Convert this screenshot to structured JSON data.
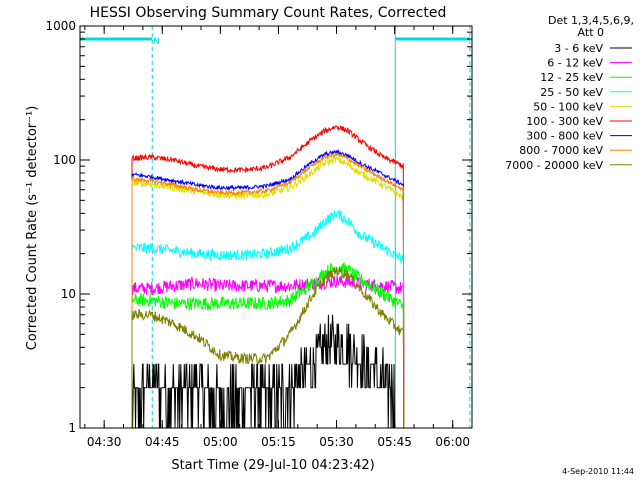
{
  "chart_data": {
    "type": "line",
    "title": "HESSI Observing Summary Count Rates, Corrected",
    "xlabel": "Start Time (29-Jul-10 04:23:42)",
    "ylabel": "Corrected Count Rate (s⁻¹ detector⁻¹)",
    "yscale": "log",
    "ylim": [
      1,
      1000
    ],
    "xlim": [
      4.396,
      6.083
    ],
    "x_ticks": [
      "04:30",
      "04:45",
      "05:00",
      "05:15",
      "05:30",
      "05:45",
      "06:00"
    ],
    "x_tick_hours": [
      4.5,
      4.75,
      5.0,
      5.25,
      5.5,
      5.75,
      6.0
    ],
    "y_ticks": [
      "1",
      "10",
      "100",
      "1000"
    ],
    "y_tick_values": [
      1,
      10,
      100,
      1000
    ],
    "legend_title_line1": "Det 1,3,4,5,6,9,",
    "legend_title_line2": "Att 0",
    "legend_position": "right, outside plot",
    "night_marker_label": "N",
    "footer_date": "4-Sep-2010 11:44",
    "orbit_markers_hours": {
      "night_solid": [
        [
          4.396,
          4.707
        ],
        [
          5.753,
          6.074
        ]
      ],
      "dashed_verticals": [
        4.707,
        6.074
      ],
      "solid_verticals": [
        5.753
      ],
      "marker_level": 800
    },
    "series": [
      {
        "name": "3 - 6 keV",
        "color": "#000000",
        "x": [
          4.62,
          4.7,
          4.8,
          4.9,
          5.0,
          5.1,
          5.2,
          5.3,
          5.4,
          5.45,
          5.5,
          5.55,
          5.6,
          5.7,
          5.75
        ],
        "values": [
          1.5,
          2.2,
          1.8,
          2.0,
          1.6,
          1.8,
          1.7,
          2.0,
          3.0,
          4.0,
          4.2,
          4.0,
          3.2,
          2.2,
          2.0
        ]
      },
      {
        "name": "6 - 12 keV",
        "color": "#ff00ff",
        "x": [
          4.62,
          4.7,
          4.8,
          4.9,
          5.0,
          5.1,
          5.2,
          5.3,
          5.4,
          5.5,
          5.6,
          5.7,
          5.79
        ],
        "values": [
          11,
          11,
          11.5,
          12,
          11.5,
          11.5,
          11.5,
          11.5,
          12,
          12.5,
          12,
          11.5,
          11
        ]
      },
      {
        "name": "12 - 25 keV",
        "color": "#00ff00",
        "x": [
          4.62,
          4.7,
          4.8,
          4.9,
          5.0,
          5.1,
          5.2,
          5.3,
          5.4,
          5.45,
          5.5,
          5.55,
          5.6,
          5.7,
          5.79
        ],
        "values": [
          9,
          9,
          8.5,
          8.5,
          8.5,
          8.5,
          8.5,
          9,
          12,
          14.5,
          16,
          15,
          13,
          10,
          8
        ]
      },
      {
        "name": "25 - 50 keV",
        "color": "#00ffff",
        "x": [
          4.62,
          4.7,
          4.8,
          4.9,
          5.0,
          5.1,
          5.2,
          5.3,
          5.4,
          5.45,
          5.5,
          5.55,
          5.6,
          5.7,
          5.79
        ],
        "values": [
          22,
          22,
          21,
          20,
          19.5,
          19.5,
          20,
          22,
          28,
          35,
          40,
          35,
          28,
          22,
          18
        ]
      },
      {
        "name": "50 - 100 keV",
        "color": "#e0e000",
        "x": [
          4.62,
          4.7,
          4.8,
          4.9,
          5.0,
          5.1,
          5.2,
          5.3,
          5.4,
          5.45,
          5.5,
          5.55,
          5.6,
          5.7,
          5.79
        ],
        "values": [
          68,
          66,
          62,
          58,
          55,
          54,
          55,
          62,
          82,
          95,
          102,
          92,
          80,
          65,
          52
        ]
      },
      {
        "name": "100 - 300 keV",
        "color": "#ff0000",
        "x": [
          4.62,
          4.7,
          4.8,
          4.9,
          5.0,
          5.1,
          5.2,
          5.3,
          5.4,
          5.45,
          5.5,
          5.55,
          5.6,
          5.7,
          5.79
        ],
        "values": [
          103,
          105,
          100,
          90,
          85,
          84,
          88,
          105,
          145,
          165,
          178,
          165,
          140,
          105,
          90
        ]
      },
      {
        "name": "300 - 800 keV",
        "color": "#0000ff",
        "x": [
          4.62,
          4.7,
          4.8,
          4.9,
          5.0,
          5.1,
          5.2,
          5.3,
          5.4,
          5.45,
          5.5,
          5.55,
          5.6,
          5.7,
          5.79
        ],
        "values": [
          78,
          75,
          70,
          65,
          62,
          62,
          64,
          72,
          98,
          110,
          115,
          108,
          95,
          78,
          65
        ]
      },
      {
        "name": "800 - 7000 keV",
        "color": "#ff8000",
        "x": [
          4.62,
          4.7,
          4.8,
          4.9,
          5.0,
          5.1,
          5.2,
          5.3,
          5.4,
          5.45,
          5.5,
          5.55,
          5.6,
          5.7,
          5.79
        ],
        "values": [
          72,
          70,
          65,
          60,
          57,
          57,
          59,
          68,
          92,
          105,
          110,
          102,
          90,
          72,
          60
        ]
      },
      {
        "name": "7000 - 20000 keV",
        "color": "#808000",
        "x": [
          4.62,
          4.7,
          4.8,
          4.9,
          5.0,
          5.1,
          5.2,
          5.3,
          5.4,
          5.45,
          5.5,
          5.55,
          5.6,
          5.7,
          5.79
        ],
        "values": [
          7,
          7,
          6,
          4.8,
          3.5,
          3.3,
          3.3,
          5,
          10,
          13,
          15,
          14,
          11,
          7,
          5
        ]
      }
    ]
  }
}
